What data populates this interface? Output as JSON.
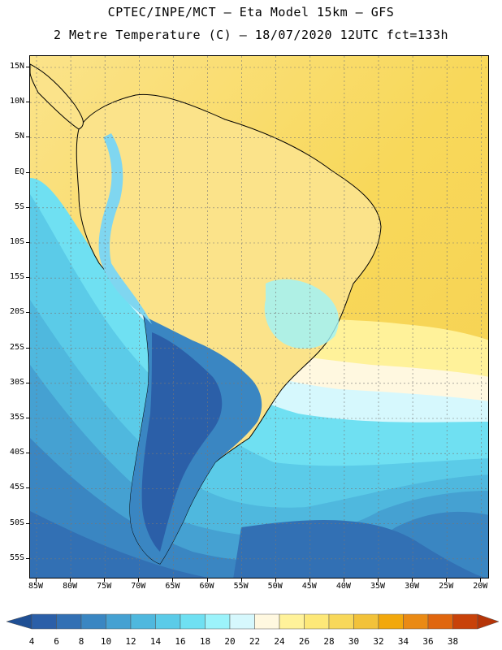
{
  "header": {
    "title_line1": "CPTEC/INPE/MCT –  Eta Model 15km – GFS",
    "title_line2": "2 Metre Temperature (C) – 18/07/2020 12UTC fct=133h"
  },
  "map": {
    "lat_labels": [
      "15N",
      "10N",
      "5N",
      "EQ",
      "5S",
      "10S",
      "15S",
      "20S",
      "25S",
      "30S",
      "35S",
      "40S",
      "45S",
      "50S",
      "55S"
    ],
    "lon_labels": [
      "85W",
      "80W",
      "75W",
      "70W",
      "65W",
      "60W",
      "55W",
      "50W",
      "45W",
      "40W",
      "35W",
      "30W",
      "25W",
      "20W"
    ],
    "colors": {
      "ocean_far_north": "#f5d050",
      "land_warm": "#fbe38a",
      "cold_andes": "#7fd6f0"
    }
  },
  "colorbar": {
    "levels": [
      "4",
      "6",
      "8",
      "10",
      "12",
      "14",
      "16",
      "18",
      "20",
      "22",
      "24",
      "26",
      "28",
      "30",
      "32",
      "34",
      "36",
      "38"
    ],
    "colors": [
      "#2b5fa8",
      "#3270b4",
      "#3a86c2",
      "#45a1d2",
      "#4fb8de",
      "#5bcbe8",
      "#6fe0f2",
      "#9cf3fb",
      "#d6f8fd",
      "#fff8e0",
      "#fff29a",
      "#fde878",
      "#f8d85a",
      "#f2c23a",
      "#f2a80c",
      "#ea8a14",
      "#e0660e",
      "#c8420a"
    ],
    "under_color": "#1f4f94",
    "over_color": "#b53508"
  }
}
